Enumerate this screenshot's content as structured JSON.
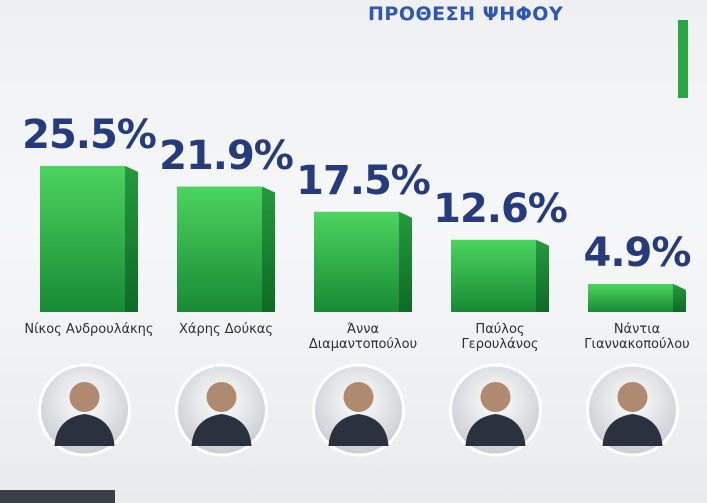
{
  "chart_data": {
    "type": "bar",
    "title": "ΠΡΟΘΕΣΗ ΨΗΦΟΥ",
    "categories": [
      "Νίκος Ανδρουλάκης",
      "Χάρης Δούκας",
      "Άννα Διαμαντοπούλου",
      "Παύλος Γερουλάνος",
      "Νάντια Γιαννακοπούλου"
    ],
    "values": [
      25.5,
      21.9,
      17.5,
      12.6,
      4.9
    ],
    "value_labels": [
      "25.5%",
      "21.9%",
      "17.5%",
      "12.6%",
      "4.9%"
    ],
    "color": "#2ea84a"
  }
}
